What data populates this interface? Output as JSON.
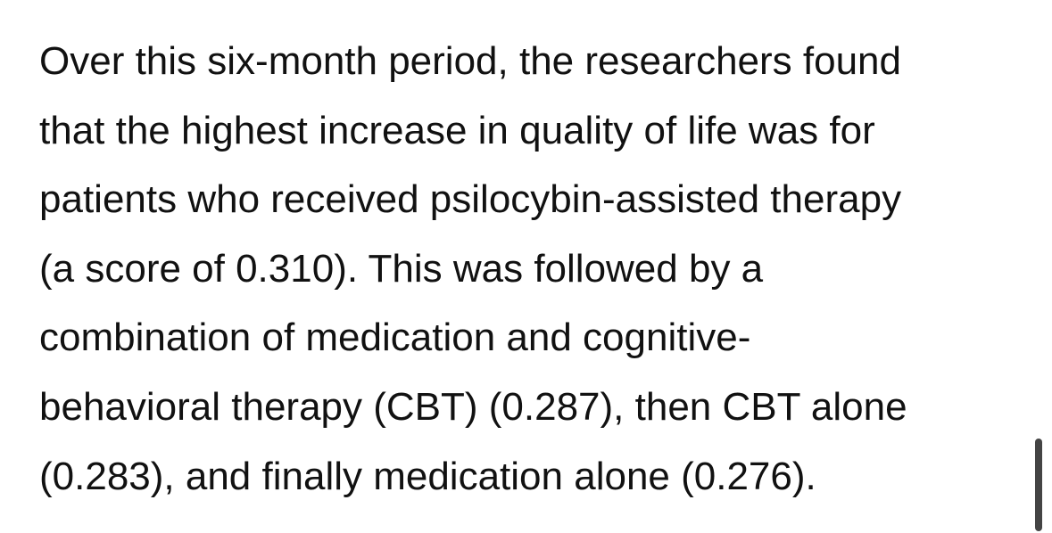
{
  "article": {
    "lines": [
      "Over this six-month period, the researchers found",
      "that the highest increase in quality of life was for",
      "patients who received psilocybin-assisted therapy",
      "(a score of 0.310). This was followed by a",
      "combination of medication and cognitive-",
      "behavioral therapy (CBT) (0.287), then CBT alone",
      "(0.283), and finally medication alone (0.276)."
    ]
  }
}
